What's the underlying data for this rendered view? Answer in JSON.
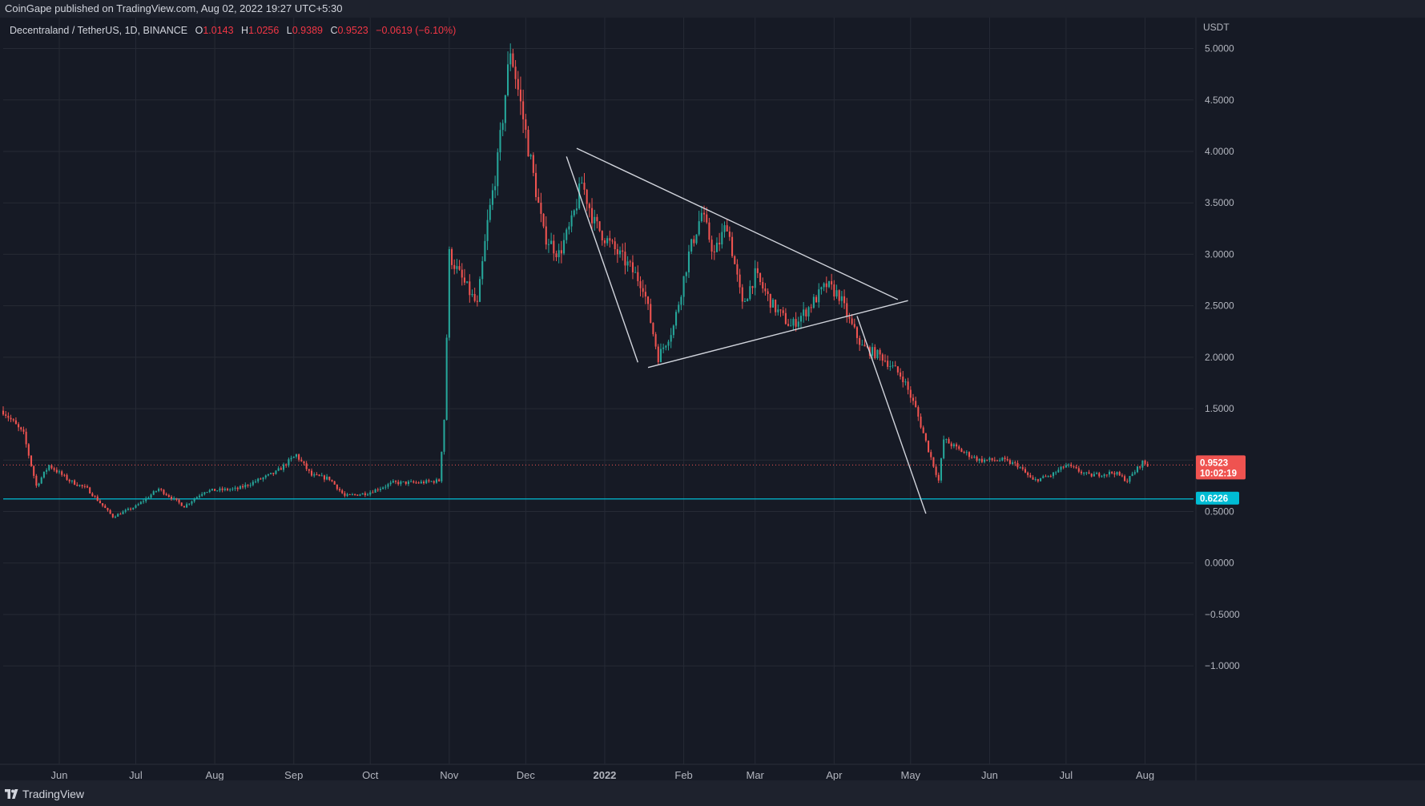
{
  "header": {
    "published": "CoinGape published on TradingView.com, Aug 02, 2022 19:27 UTC+5:30"
  },
  "legend": {
    "symbol": "Decentraland / TetherUS, 1D, BINANCE",
    "open_label": "O",
    "open": "1.0143",
    "high_label": "H",
    "high": "1.0256",
    "low_label": "L",
    "low": "0.9389",
    "close_label": "C",
    "close": "0.9523",
    "change": "−0.0619 (−6.10%)"
  },
  "footer": {
    "brand": "TradingView"
  },
  "chart_data": {
    "type": "candlestick",
    "y_unit": "USDT",
    "ylim": [
      -1.1,
      5.3
    ],
    "y_ticks": [
      "5.0000",
      "4.5000",
      "4.0000",
      "3.5000",
      "3.0000",
      "2.5000",
      "2.0000",
      "1.5000",
      "1.0000",
      "0.5000",
      "0.0000",
      "−0.5000",
      "−1.0000"
    ],
    "y_tick_values": [
      5,
      4.5,
      4,
      3.5,
      3,
      2.5,
      2,
      1.5,
      1,
      0.5,
      0,
      -0.5,
      -1
    ],
    "x_range": [
      "2021-05-10",
      "2022-08-20"
    ],
    "x_ticks": [
      {
        "label": "Jun",
        "date": "2021-06-01"
      },
      {
        "label": "Jul",
        "date": "2021-07-01"
      },
      {
        "label": "Aug",
        "date": "2021-08-01"
      },
      {
        "label": "Sep",
        "date": "2021-09-01"
      },
      {
        "label": "Oct",
        "date": "2021-10-01"
      },
      {
        "label": "Nov",
        "date": "2021-11-01"
      },
      {
        "label": "Dec",
        "date": "2021-12-01"
      },
      {
        "label": "2022",
        "date": "2022-01-01"
      },
      {
        "label": "Feb",
        "date": "2022-02-01"
      },
      {
        "label": "Mar",
        "date": "2022-03-01"
      },
      {
        "label": "Apr",
        "date": "2022-04-01"
      },
      {
        "label": "May",
        "date": "2022-05-01"
      },
      {
        "label": "Jun",
        "date": "2022-06-01"
      },
      {
        "label": "Jul",
        "date": "2022-07-01"
      },
      {
        "label": "Aug",
        "date": "2022-08-01"
      }
    ],
    "price_path": [
      [
        "2021-05-10",
        1.48
      ],
      [
        "2021-05-18",
        1.25
      ],
      [
        "2021-05-23",
        0.75
      ],
      [
        "2021-05-28",
        0.95
      ],
      [
        "2021-06-05",
        0.8
      ],
      [
        "2021-06-12",
        0.72
      ],
      [
        "2021-06-22",
        0.45
      ],
      [
        "2021-07-01",
        0.55
      ],
      [
        "2021-07-10",
        0.72
      ],
      [
        "2021-07-20",
        0.55
      ],
      [
        "2021-07-28",
        0.7
      ],
      [
        "2021-08-10",
        0.72
      ],
      [
        "2021-08-25",
        0.88
      ],
      [
        "2021-09-02",
        1.05
      ],
      [
        "2021-09-08",
        0.85
      ],
      [
        "2021-09-15",
        0.82
      ],
      [
        "2021-09-21",
        0.65
      ],
      [
        "2021-09-30",
        0.68
      ],
      [
        "2021-10-10",
        0.78
      ],
      [
        "2021-10-20",
        0.78
      ],
      [
        "2021-10-28",
        0.8
      ],
      [
        "2021-10-30",
        1.4
      ],
      [
        "2021-11-01",
        3.0
      ],
      [
        "2021-11-05",
        2.8
      ],
      [
        "2021-11-12",
        2.5
      ],
      [
        "2021-11-16",
        3.3
      ],
      [
        "2021-11-20",
        3.9
      ],
      [
        "2021-11-25",
        5.0
      ],
      [
        "2021-11-28",
        4.6
      ],
      [
        "2021-12-03",
        3.9
      ],
      [
        "2021-12-08",
        3.2
      ],
      [
        "2021-12-14",
        3.0
      ],
      [
        "2021-12-19",
        3.3
      ],
      [
        "2021-12-23",
        3.7
      ],
      [
        "2021-12-28",
        3.3
      ],
      [
        "2022-01-03",
        3.1
      ],
      [
        "2022-01-10",
        2.9
      ],
      [
        "2022-01-16",
        2.7
      ],
      [
        "2022-01-22",
        2.0
      ],
      [
        "2022-01-28",
        2.3
      ],
      [
        "2022-02-03",
        3.0
      ],
      [
        "2022-02-08",
        3.4
      ],
      [
        "2022-02-13",
        3.0
      ],
      [
        "2022-02-18",
        3.3
      ],
      [
        "2022-02-24",
        2.5
      ],
      [
        "2022-03-01",
        2.8
      ],
      [
        "2022-03-08",
        2.5
      ],
      [
        "2022-03-15",
        2.3
      ],
      [
        "2022-03-21",
        2.45
      ],
      [
        "2022-03-29",
        2.7
      ],
      [
        "2022-04-03",
        2.6
      ],
      [
        "2022-04-07",
        2.35
      ],
      [
        "2022-04-12",
        2.1
      ],
      [
        "2022-04-20",
        2.0
      ],
      [
        "2022-04-28",
        1.8
      ],
      [
        "2022-05-03",
        1.5
      ],
      [
        "2022-05-08",
        1.1
      ],
      [
        "2022-05-12",
        0.8
      ],
      [
        "2022-05-14",
        1.2
      ],
      [
        "2022-05-20",
        1.1
      ],
      [
        "2022-05-28",
        1.0
      ],
      [
        "2022-06-06",
        1.0
      ],
      [
        "2022-06-12",
        0.95
      ],
      [
        "2022-06-18",
        0.8
      ],
      [
        "2022-06-25",
        0.85
      ],
      [
        "2022-07-01",
        0.95
      ],
      [
        "2022-07-10",
        0.85
      ],
      [
        "2022-07-20",
        0.88
      ],
      [
        "2022-07-25",
        0.8
      ],
      [
        "2022-07-31",
        0.98
      ],
      [
        "2022-08-02",
        0.95
      ]
    ],
    "last_price": {
      "value": 0.9523,
      "label": "0.9523",
      "countdown": "10:02:19"
    },
    "support_level": {
      "value": 0.6226,
      "label": "0.6226"
    },
    "trendlines": [
      {
        "p1": [
          "2021-12-21",
          4.03
        ],
        "p2": [
          "2022-04-26",
          2.56
        ]
      },
      {
        "p1": [
          "2022-01-18",
          1.9
        ],
        "p2": [
          "2022-04-30",
          2.55
        ]
      },
      {
        "p1": [
          "2021-12-17",
          3.95
        ],
        "p2": [
          "2022-01-14",
          1.95
        ]
      },
      {
        "p1": [
          "2022-04-10",
          2.4
        ],
        "p2": [
          "2022-05-07",
          0.48
        ]
      }
    ],
    "colors": {
      "up": "#26a69a",
      "down": "#ef5350",
      "support": "#00bcd4",
      "trendline": "#d1d4dc",
      "background": "#161a25",
      "grid": "#262a35"
    }
  }
}
